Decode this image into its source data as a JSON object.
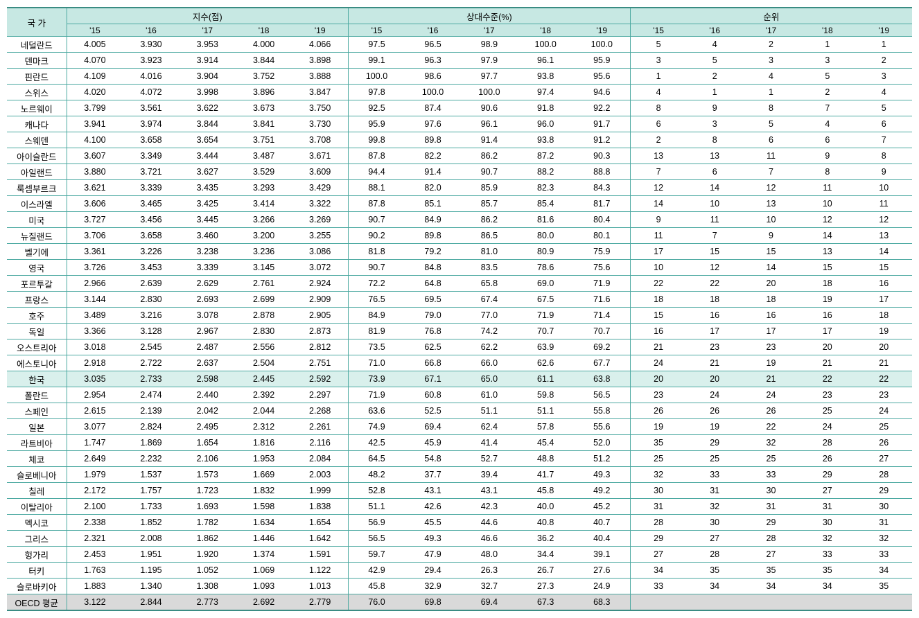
{
  "headers": {
    "country": "국 가",
    "group_index": "지수(점)",
    "group_relative": "상대수준(%)",
    "group_rank": "순위",
    "years": [
      "'15",
      "'16",
      "'17",
      "'18",
      "'19"
    ]
  },
  "highlight_country": "한국",
  "avg_label": "OECD 평균",
  "countries": [
    {
      "name": "네덜란드",
      "idx": [
        4.005,
        3.93,
        3.953,
        4.0,
        4.066
      ],
      "rel": [
        97.5,
        96.5,
        98.9,
        100.0,
        100.0
      ],
      "rank": [
        5,
        4,
        2,
        1,
        1
      ]
    },
    {
      "name": "덴마크",
      "idx": [
        4.07,
        3.923,
        3.914,
        3.844,
        3.898
      ],
      "rel": [
        99.1,
        96.3,
        97.9,
        96.1,
        95.9
      ],
      "rank": [
        3,
        5,
        3,
        3,
        2
      ]
    },
    {
      "name": "핀란드",
      "idx": [
        4.109,
        4.016,
        3.904,
        3.752,
        3.888
      ],
      "rel": [
        100.0,
        98.6,
        97.7,
        93.8,
        95.6
      ],
      "rank": [
        1,
        2,
        4,
        5,
        3
      ]
    },
    {
      "name": "스위스",
      "idx": [
        4.02,
        4.072,
        3.998,
        3.896,
        3.847
      ],
      "rel": [
        97.8,
        100.0,
        100.0,
        97.4,
        94.6
      ],
      "rank": [
        4,
        1,
        1,
        2,
        4
      ]
    },
    {
      "name": "노르웨이",
      "idx": [
        3.799,
        3.561,
        3.622,
        3.673,
        3.75
      ],
      "rel": [
        92.5,
        87.4,
        90.6,
        91.8,
        92.2
      ],
      "rank": [
        8,
        9,
        8,
        7,
        5
      ]
    },
    {
      "name": "캐나다",
      "idx": [
        3.941,
        3.974,
        3.844,
        3.841,
        3.73
      ],
      "rel": [
        95.9,
        97.6,
        96.1,
        96.0,
        91.7
      ],
      "rank": [
        6,
        3,
        5,
        4,
        6
      ]
    },
    {
      "name": "스웨덴",
      "idx": [
        4.1,
        3.658,
        3.654,
        3.751,
        3.708
      ],
      "rel": [
        99.8,
        89.8,
        91.4,
        93.8,
        91.2
      ],
      "rank": [
        2,
        8,
        6,
        6,
        7
      ]
    },
    {
      "name": "아이슬란드",
      "idx": [
        3.607,
        3.349,
        3.444,
        3.487,
        3.671
      ],
      "rel": [
        87.8,
        82.2,
        86.2,
        87.2,
        90.3
      ],
      "rank": [
        13,
        13,
        11,
        9,
        8
      ]
    },
    {
      "name": "아일랜드",
      "idx": [
        3.88,
        3.721,
        3.627,
        3.529,
        3.609
      ],
      "rel": [
        94.4,
        91.4,
        90.7,
        88.2,
        88.8
      ],
      "rank": [
        7,
        6,
        7,
        8,
        9
      ]
    },
    {
      "name": "룩셈부르크",
      "idx": [
        3.621,
        3.339,
        3.435,
        3.293,
        3.429
      ],
      "rel": [
        88.1,
        82.0,
        85.9,
        82.3,
        84.3
      ],
      "rank": [
        12,
        14,
        12,
        11,
        10
      ]
    },
    {
      "name": "이스라엘",
      "idx": [
        3.606,
        3.465,
        3.425,
        3.414,
        3.322
      ],
      "rel": [
        87.8,
        85.1,
        85.7,
        85.4,
        81.7
      ],
      "rank": [
        14,
        10,
        13,
        10,
        11
      ]
    },
    {
      "name": "미국",
      "idx": [
        3.727,
        3.456,
        3.445,
        3.266,
        3.269
      ],
      "rel": [
        90.7,
        84.9,
        86.2,
        81.6,
        80.4
      ],
      "rank": [
        9,
        11,
        10,
        12,
        12
      ]
    },
    {
      "name": "뉴질랜드",
      "idx": [
        3.706,
        3.658,
        3.46,
        3.2,
        3.255
      ],
      "rel": [
        90.2,
        89.8,
        86.5,
        80.0,
        80.1
      ],
      "rank": [
        11,
        7,
        9,
        14,
        13
      ]
    },
    {
      "name": "벨기에",
      "idx": [
        3.361,
        3.226,
        3.238,
        3.236,
        3.086
      ],
      "rel": [
        81.8,
        79.2,
        81.0,
        80.9,
        75.9
      ],
      "rank": [
        17,
        15,
        15,
        13,
        14
      ]
    },
    {
      "name": "영국",
      "idx": [
        3.726,
        3.453,
        3.339,
        3.145,
        3.072
      ],
      "rel": [
        90.7,
        84.8,
        83.5,
        78.6,
        75.6
      ],
      "rank": [
        10,
        12,
        14,
        15,
        15
      ]
    },
    {
      "name": "포르투갈",
      "idx": [
        2.966,
        2.639,
        2.629,
        2.761,
        2.924
      ],
      "rel": [
        72.2,
        64.8,
        65.8,
        69.0,
        71.9
      ],
      "rank": [
        22,
        22,
        20,
        18,
        16
      ]
    },
    {
      "name": "프랑스",
      "idx": [
        3.144,
        2.83,
        2.693,
        2.699,
        2.909
      ],
      "rel": [
        76.5,
        69.5,
        67.4,
        67.5,
        71.6
      ],
      "rank": [
        18,
        18,
        18,
        19,
        17
      ]
    },
    {
      "name": "호주",
      "idx": [
        3.489,
        3.216,
        3.078,
        2.878,
        2.905
      ],
      "rel": [
        84.9,
        79.0,
        77.0,
        71.9,
        71.4
      ],
      "rank": [
        15,
        16,
        16,
        16,
        18
      ]
    },
    {
      "name": "독일",
      "idx": [
        3.366,
        3.128,
        2.967,
        2.83,
        2.873
      ],
      "rel": [
        81.9,
        76.8,
        74.2,
        70.7,
        70.7
      ],
      "rank": [
        16,
        17,
        17,
        17,
        19
      ]
    },
    {
      "name": "오스트리아",
      "idx": [
        3.018,
        2.545,
        2.487,
        2.556,
        2.812
      ],
      "rel": [
        73.5,
        62.5,
        62.2,
        63.9,
        69.2
      ],
      "rank": [
        21,
        23,
        23,
        20,
        20
      ]
    },
    {
      "name": "에스토니아",
      "idx": [
        2.918,
        2.722,
        2.637,
        2.504,
        2.751
      ],
      "rel": [
        71.0,
        66.8,
        66.0,
        62.6,
        67.7
      ],
      "rank": [
        24,
        21,
        19,
        21,
        21
      ]
    },
    {
      "name": "한국",
      "idx": [
        3.035,
        2.733,
        2.598,
        2.445,
        2.592
      ],
      "rel": [
        73.9,
        67.1,
        65.0,
        61.1,
        63.8
      ],
      "rank": [
        20,
        20,
        21,
        22,
        22
      ]
    },
    {
      "name": "폴란드",
      "idx": [
        2.954,
        2.474,
        2.44,
        2.392,
        2.297
      ],
      "rel": [
        71.9,
        60.8,
        61.0,
        59.8,
        56.5
      ],
      "rank": [
        23,
        24,
        24,
        23,
        23
      ]
    },
    {
      "name": "스페인",
      "idx": [
        2.615,
        2.139,
        2.042,
        2.044,
        2.268
      ],
      "rel": [
        63.6,
        52.5,
        51.1,
        51.1,
        55.8
      ],
      "rank": [
        26,
        26,
        26,
        25,
        24
      ]
    },
    {
      "name": "일본",
      "idx": [
        3.077,
        2.824,
        2.495,
        2.312,
        2.261
      ],
      "rel": [
        74.9,
        69.4,
        62.4,
        57.8,
        55.6
      ],
      "rank": [
        19,
        19,
        22,
        24,
        25
      ]
    },
    {
      "name": "라트비아",
      "idx": [
        1.747,
        1.869,
        1.654,
        1.816,
        2.116
      ],
      "rel": [
        42.5,
        45.9,
        41.4,
        45.4,
        52.0
      ],
      "rank": [
        35,
        29,
        32,
        28,
        26
      ]
    },
    {
      "name": "체코",
      "idx": [
        2.649,
        2.232,
        2.106,
        1.953,
        2.084
      ],
      "rel": [
        64.5,
        54.8,
        52.7,
        48.8,
        51.2
      ],
      "rank": [
        25,
        25,
        25,
        26,
        27
      ]
    },
    {
      "name": "슬로베니아",
      "idx": [
        1.979,
        1.537,
        1.573,
        1.669,
        2.003
      ],
      "rel": [
        48.2,
        37.7,
        39.4,
        41.7,
        49.3
      ],
      "rank": [
        32,
        33,
        33,
        29,
        28
      ]
    },
    {
      "name": "칠레",
      "idx": [
        2.172,
        1.757,
        1.723,
        1.832,
        1.999
      ],
      "rel": [
        52.8,
        43.1,
        43.1,
        45.8,
        49.2
      ],
      "rank": [
        30,
        31,
        30,
        27,
        29
      ]
    },
    {
      "name": "이탈리아",
      "idx": [
        2.1,
        1.733,
        1.693,
        1.598,
        1.838
      ],
      "rel": [
        51.1,
        42.6,
        42.3,
        40.0,
        45.2
      ],
      "rank": [
        31,
        32,
        31,
        31,
        30
      ]
    },
    {
      "name": "멕시코",
      "idx": [
        2.338,
        1.852,
        1.782,
        1.634,
        1.654
      ],
      "rel": [
        56.9,
        45.5,
        44.6,
        40.8,
        40.7
      ],
      "rank": [
        28,
        30,
        29,
        30,
        31
      ]
    },
    {
      "name": "그리스",
      "idx": [
        2.321,
        2.008,
        1.862,
        1.446,
        1.642
      ],
      "rel": [
        56.5,
        49.3,
        46.6,
        36.2,
        40.4
      ],
      "rank": [
        29,
        27,
        28,
        32,
        32
      ]
    },
    {
      "name": "헝가리",
      "idx": [
        2.453,
        1.951,
        1.92,
        1.374,
        1.591
      ],
      "rel": [
        59.7,
        47.9,
        48.0,
        34.4,
        39.1
      ],
      "rank": [
        27,
        28,
        27,
        33,
        33
      ]
    },
    {
      "name": "터키",
      "idx": [
        1.763,
        1.195,
        1.052,
        1.069,
        1.122
      ],
      "rel": [
        42.9,
        29.4,
        26.3,
        26.7,
        27.6
      ],
      "rank": [
        34,
        35,
        35,
        35,
        34
      ]
    },
    {
      "name": "슬로바키아",
      "idx": [
        1.883,
        1.34,
        1.308,
        1.093,
        1.013
      ],
      "rel": [
        45.8,
        32.9,
        32.7,
        27.3,
        24.9
      ],
      "rank": [
        33,
        34,
        34,
        34,
        35
      ]
    }
  ],
  "oecd_avg": {
    "idx": [
      3.122,
      2.844,
      2.773,
      2.692,
      2.779
    ],
    "rel": [
      76.0,
      69.8,
      69.4,
      67.3,
      68.3
    ]
  }
}
